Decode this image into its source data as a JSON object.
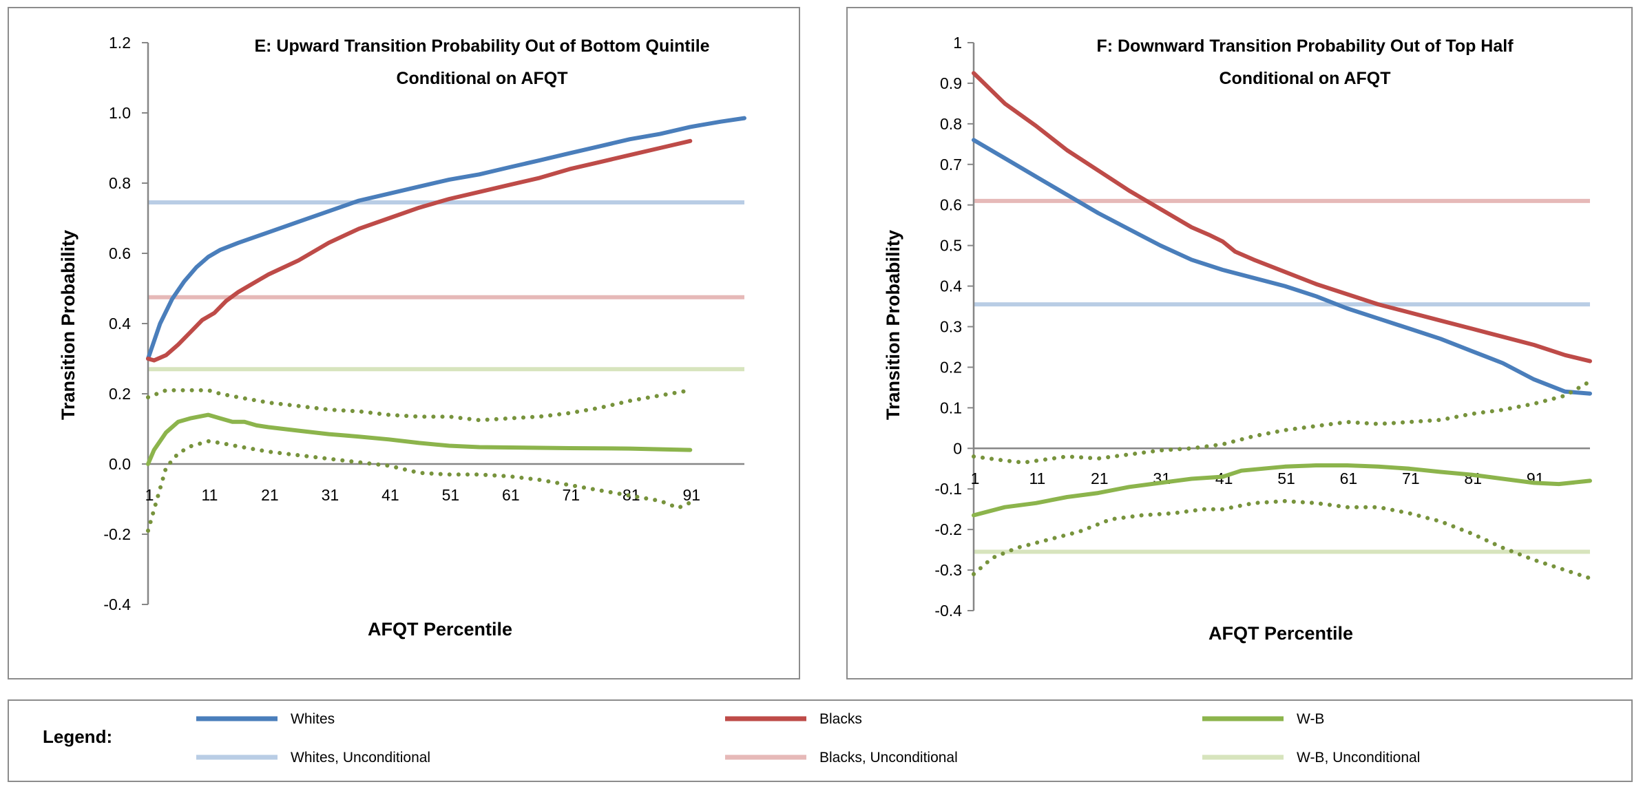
{
  "colors": {
    "whites": "#4a7ebb",
    "blacks": "#be4b48",
    "wb": "#8cb44c",
    "wb_ci": "#77933c",
    "whites_uncond": "#b9cde5",
    "blacks_uncond": "#e6b9b8",
    "wb_uncond": "#d7e4bd"
  },
  "legend": {
    "heading": "Legend:",
    "items": [
      {
        "key": "whites",
        "label": "Whites"
      },
      {
        "key": "blacks",
        "label": "Blacks"
      },
      {
        "key": "wb",
        "label": "W-B"
      },
      {
        "key": "whites_uncond",
        "label": "Whites, Unconditional"
      },
      {
        "key": "blacks_uncond",
        "label": "Blacks, Unconditional"
      },
      {
        "key": "wb_uncond",
        "label": "W-B, Unconditional"
      }
    ]
  },
  "chart_data": [
    {
      "type": "line",
      "title": [
        "E: Upward Transition Probability Out of Bottom Quintile",
        "Conditional on AFQT"
      ],
      "xlabel": "AFQT Percentile",
      "ylabel": "Transition Probability",
      "xlim": [
        1,
        100
      ],
      "ylim": [
        -0.4,
        1.2
      ],
      "yticks": [
        "-0.4",
        "-0.2",
        "0.0",
        "0.2",
        "0.4",
        "0.6",
        "0.8",
        "1.0",
        "1.2"
      ],
      "ytick_values": [
        -0.4,
        -0.2,
        0,
        0.2,
        0.4,
        0.6,
        0.8,
        1.0,
        1.2
      ],
      "xticks": [
        1,
        11,
        21,
        31,
        41,
        51,
        61,
        71,
        81,
        91
      ],
      "unconditional": {
        "whites": 0.745,
        "blacks": 0.475,
        "wb": 0.27
      },
      "series": [
        {
          "name": "Whites",
          "key": "whites",
          "x": [
            1,
            3,
            5,
            7,
            9,
            11,
            13,
            16,
            21,
            26,
            31,
            36,
            41,
            46,
            51,
            56,
            61,
            66,
            71,
            76,
            81,
            86,
            91,
            96,
            100
          ],
          "y": [
            0.3,
            0.4,
            0.47,
            0.52,
            0.56,
            0.59,
            0.61,
            0.63,
            0.66,
            0.69,
            0.72,
            0.75,
            0.77,
            0.79,
            0.81,
            0.825,
            0.845,
            0.865,
            0.885,
            0.905,
            0.925,
            0.94,
            0.96,
            0.975,
            0.985
          ]
        },
        {
          "name": "Blacks",
          "key": "blacks",
          "x": [
            1,
            2,
            4,
            6,
            8,
            10,
            12,
            14,
            16,
            18,
            21,
            26,
            31,
            36,
            41,
            46,
            51,
            56,
            61,
            66,
            71,
            76,
            81,
            86,
            91
          ],
          "y": [
            0.3,
            0.295,
            0.31,
            0.34,
            0.375,
            0.41,
            0.43,
            0.465,
            0.49,
            0.51,
            0.54,
            0.58,
            0.63,
            0.67,
            0.7,
            0.73,
            0.755,
            0.775,
            0.795,
            0.815,
            0.84,
            0.86,
            0.88,
            0.9,
            0.92
          ]
        },
        {
          "name": "W-B",
          "key": "wb",
          "x": [
            1,
            2,
            4,
            6,
            8,
            11,
            13,
            15,
            17,
            19,
            21,
            26,
            31,
            36,
            41,
            46,
            51,
            56,
            61,
            71,
            81,
            91
          ],
          "y": [
            0.0,
            0.04,
            0.09,
            0.12,
            0.13,
            0.14,
            0.13,
            0.12,
            0.12,
            0.11,
            0.105,
            0.095,
            0.085,
            0.078,
            0.07,
            0.06,
            0.052,
            0.048,
            0.047,
            0.045,
            0.044,
            0.04
          ]
        },
        {
          "name": "W-B upper CI",
          "key": "wb_ci",
          "dotted": true,
          "x": [
            1,
            4,
            7,
            11,
            13,
            16,
            21,
            26,
            31,
            36,
            41,
            46,
            51,
            56,
            61,
            66,
            71,
            76,
            81,
            86,
            91
          ],
          "y": [
            0.19,
            0.21,
            0.21,
            0.21,
            0.2,
            0.19,
            0.175,
            0.165,
            0.155,
            0.15,
            0.14,
            0.135,
            0.135,
            0.125,
            0.13,
            0.135,
            0.145,
            0.16,
            0.18,
            0.195,
            0.21
          ]
        },
        {
          "name": "W-B lower CI",
          "key": "wb_ci",
          "dotted": true,
          "x": [
            1,
            2,
            3,
            4,
            6,
            8,
            11,
            13,
            16,
            21,
            26,
            31,
            36,
            41,
            46,
            51,
            56,
            61,
            66,
            71,
            76,
            81,
            86,
            89,
            91
          ],
          "y": [
            -0.19,
            -0.13,
            -0.07,
            -0.01,
            0.03,
            0.05,
            0.065,
            0.06,
            0.05,
            0.035,
            0.025,
            0.015,
            0.005,
            -0.005,
            -0.025,
            -0.03,
            -0.03,
            -0.035,
            -0.045,
            -0.06,
            -0.075,
            -0.09,
            -0.105,
            -0.125,
            -0.11
          ]
        }
      ]
    },
    {
      "type": "line",
      "title": [
        "F: Downward Transition Probability Out of Top Half",
        "Conditional on AFQT"
      ],
      "xlabel": "AFQT Percentile",
      "ylabel": "Transition Probability",
      "xlim": [
        1,
        100
      ],
      "ylim": [
        -0.4,
        1.0
      ],
      "yticks": [
        "-0.4",
        "-0.3",
        "-0.2",
        "-0.1",
        "0",
        "0.1",
        "0.2",
        "0.3",
        "0.4",
        "0.5",
        "0.6",
        "0.7",
        "0.8",
        "0.9",
        "1"
      ],
      "ytick_values": [
        -0.4,
        -0.3,
        -0.2,
        -0.1,
        0,
        0.1,
        0.2,
        0.3,
        0.4,
        0.5,
        0.6,
        0.7,
        0.8,
        0.9,
        1.0
      ],
      "xticks": [
        1,
        11,
        21,
        31,
        41,
        51,
        61,
        71,
        81,
        91
      ],
      "unconditional": {
        "whites": 0.355,
        "blacks": 0.61,
        "wb": -0.255
      },
      "series": [
        {
          "name": "Whites",
          "key": "whites",
          "x": [
            1,
            6,
            11,
            16,
            21,
            26,
            31,
            36,
            41,
            46,
            51,
            56,
            61,
            66,
            71,
            76,
            81,
            86,
            91,
            96,
            100
          ],
          "y": [
            0.76,
            0.715,
            0.67,
            0.625,
            0.58,
            0.54,
            0.5,
            0.465,
            0.44,
            0.42,
            0.4,
            0.375,
            0.345,
            0.32,
            0.295,
            0.27,
            0.24,
            0.21,
            0.17,
            0.14,
            0.135
          ]
        },
        {
          "name": "Blacks",
          "key": "blacks",
          "x": [
            1,
            3,
            6,
            11,
            16,
            21,
            26,
            31,
            36,
            39,
            41,
            43,
            46,
            51,
            56,
            61,
            66,
            71,
            76,
            81,
            86,
            91,
            96,
            100
          ],
          "y": [
            0.925,
            0.895,
            0.85,
            0.795,
            0.735,
            0.685,
            0.635,
            0.59,
            0.545,
            0.525,
            0.51,
            0.485,
            0.465,
            0.435,
            0.405,
            0.38,
            0.355,
            0.335,
            0.315,
            0.295,
            0.275,
            0.255,
            0.23,
            0.215
          ]
        },
        {
          "name": "W-B",
          "key": "wb",
          "x": [
            1,
            6,
            11,
            16,
            21,
            26,
            31,
            36,
            41,
            44,
            51,
            56,
            61,
            66,
            71,
            76,
            81,
            86,
            91,
            95,
            100
          ],
          "y": [
            -0.165,
            -0.145,
            -0.135,
            -0.12,
            -0.11,
            -0.095,
            -0.085,
            -0.075,
            -0.07,
            -0.055,
            -0.045,
            -0.042,
            -0.042,
            -0.045,
            -0.05,
            -0.058,
            -0.065,
            -0.075,
            -0.085,
            -0.088,
            -0.08
          ]
        },
        {
          "name": "W-B upper CI",
          "key": "wb_ci",
          "dotted": true,
          "x": [
            1,
            6,
            9,
            16,
            21,
            26,
            31,
            36,
            41,
            46,
            51,
            56,
            61,
            66,
            71,
            76,
            81,
            86,
            91,
            96,
            100
          ],
          "y": [
            -0.02,
            -0.03,
            -0.035,
            -0.02,
            -0.025,
            -0.015,
            -0.005,
            0.0,
            0.01,
            0.03,
            0.045,
            0.055,
            0.065,
            0.06,
            0.065,
            0.07,
            0.085,
            0.095,
            0.11,
            0.13,
            0.165
          ]
        },
        {
          "name": "W-B lower CI",
          "key": "wb_ci",
          "dotted": true,
          "x": [
            1,
            4,
            8,
            13,
            18,
            23,
            28,
            33,
            38,
            41,
            46,
            51,
            56,
            61,
            66,
            71,
            76,
            81,
            86,
            91,
            96,
            100
          ],
          "y": [
            -0.31,
            -0.27,
            -0.245,
            -0.225,
            -0.205,
            -0.175,
            -0.165,
            -0.16,
            -0.15,
            -0.15,
            -0.135,
            -0.13,
            -0.135,
            -0.145,
            -0.145,
            -0.16,
            -0.18,
            -0.21,
            -0.245,
            -0.275,
            -0.3,
            -0.32
          ]
        }
      ]
    }
  ]
}
